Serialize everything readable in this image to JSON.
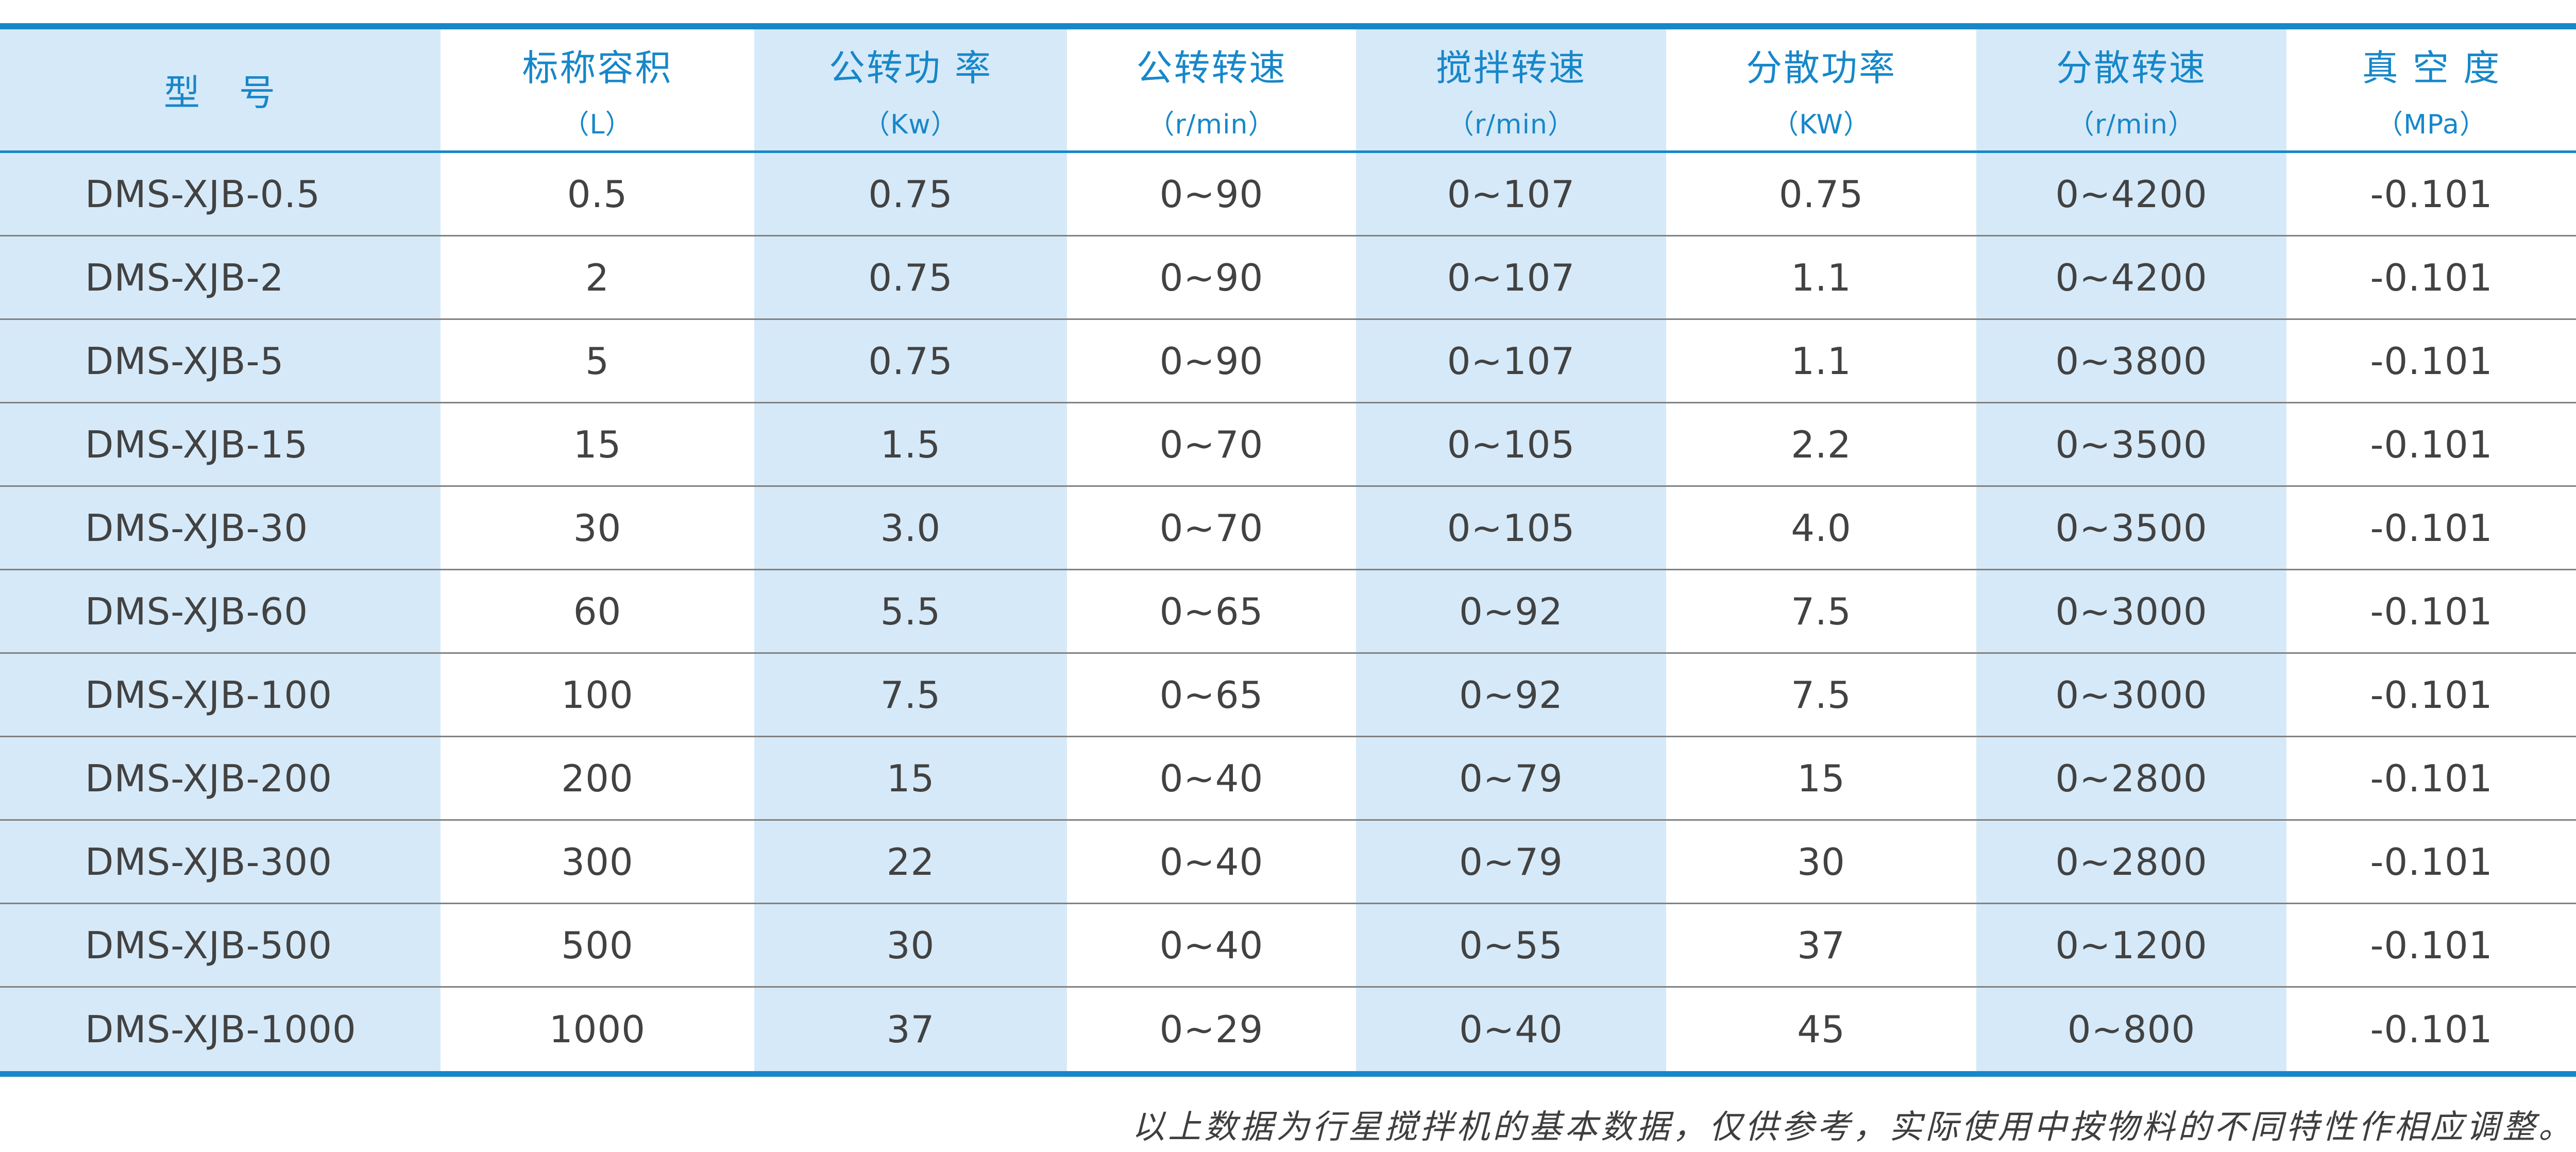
{
  "colors": {
    "accent_blue": "#1787c9",
    "stripe_light_blue": "#d6e9f8",
    "row_separator_gray": "#818181",
    "body_text": "#424242",
    "footnote_text": "#3e3e3e",
    "background": "#ffffff"
  },
  "table": {
    "headers": [
      {
        "label": "型　号",
        "unit": ""
      },
      {
        "label": "标称容积",
        "unit": "（L）"
      },
      {
        "label": "公转功 率",
        "unit": "（Kw）"
      },
      {
        "label": "公转转速",
        "unit": "（r/min）"
      },
      {
        "label": "搅拌转速",
        "unit": "（r/min）"
      },
      {
        "label": "分散功率",
        "unit": "（KW）"
      },
      {
        "label": "分散转速",
        "unit": "（r/min）"
      },
      {
        "label": "真 空 度",
        "unit": "（MPa）"
      }
    ],
    "rows": [
      [
        "DMS-XJB-0.5",
        "0.5",
        "0.75",
        "0~90",
        "0~107",
        "0.75",
        "0~4200",
        "-0.101"
      ],
      [
        "DMS-XJB-2",
        "2",
        "0.75",
        "0~90",
        "0~107",
        "1.1",
        "0~4200",
        "-0.101"
      ],
      [
        "DMS-XJB-5",
        "5",
        "0.75",
        "0~90",
        "0~107",
        "1.1",
        "0~3800",
        "-0.101"
      ],
      [
        "DMS-XJB-15",
        "15",
        "1.5",
        "0~70",
        "0~105",
        "2.2",
        "0~3500",
        "-0.101"
      ],
      [
        "DMS-XJB-30",
        "30",
        "3.0",
        "0~70",
        "0~105",
        "4.0",
        "0~3500",
        "-0.101"
      ],
      [
        "DMS-XJB-60",
        "60",
        "5.5",
        "0~65",
        "0~92",
        "7.5",
        "0~3000",
        "-0.101"
      ],
      [
        "DMS-XJB-100",
        "100",
        "7.5",
        "0~65",
        "0~92",
        "7.5",
        "0~3000",
        "-0.101"
      ],
      [
        "DMS-XJB-200",
        "200",
        "15",
        "0~40",
        "0~79",
        "15",
        "0~2800",
        "-0.101"
      ],
      [
        "DMS-XJB-300",
        "300",
        "22",
        "0~40",
        "0~79",
        "30",
        "0~2800",
        "-0.101"
      ],
      [
        "DMS-XJB-500",
        "500",
        "30",
        "0~40",
        "0~55",
        "37",
        "0~1200",
        "-0.101"
      ],
      [
        "DMS-XJB-1000",
        "1000",
        "37",
        "0~29",
        "0~40",
        "45",
        "0~800",
        "-0.101"
      ]
    ]
  },
  "footnote": "以上数据为行星搅拌机的基本数据，仅供参考，实际使用中按物料的不同特性作相应调整。"
}
